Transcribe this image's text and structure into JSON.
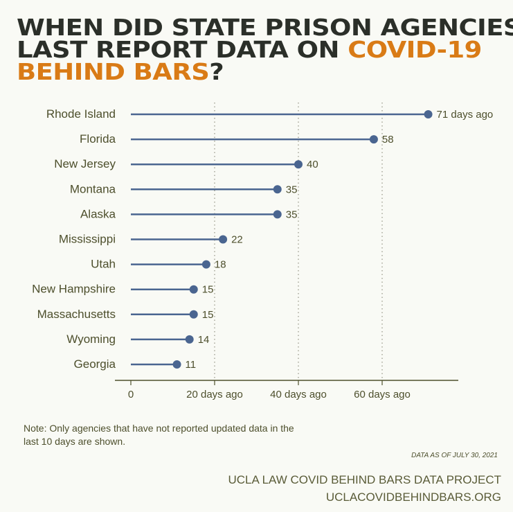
{
  "title": {
    "part1": "WHEN DID STATE PRISON AGENCIES",
    "part2": "LAST REPORT DATA ON ",
    "highlight1": "COVID-19",
    "highlight2": "BEHIND BARS",
    "end": "?"
  },
  "colors": {
    "accent": "#d97b16",
    "title": "#2b2f29",
    "series": "#4a6590",
    "text": "#4d4f2c",
    "background": "#f9faf5"
  },
  "chart_data": {
    "type": "lollipop",
    "categories": [
      "Rhode Island",
      "Florida",
      "New Jersey",
      "Montana",
      "Alaska",
      "Mississippi",
      "Utah",
      "New Hampshire",
      "Massachusetts",
      "Wyoming",
      "Georgia"
    ],
    "values": [
      71,
      58,
      40,
      35,
      35,
      22,
      18,
      15,
      15,
      14,
      11
    ],
    "data_labels": [
      "71 days ago",
      "58",
      "40",
      "35",
      "35",
      "22",
      "18",
      "15",
      "15",
      "14",
      "11"
    ],
    "x_ticks": [
      0,
      20,
      40,
      60
    ],
    "x_tick_labels": [
      "0",
      "20 days ago",
      "40 days ago",
      "60 days ago"
    ],
    "xlim": [
      -4,
      78
    ],
    "grid": "vertical dotted"
  },
  "note": "Note:  Only agencies that have not reported updated data in the last 10 days are shown.",
  "as_of": "DATA AS OF JULY 30, 2021",
  "credit": {
    "line1": "UCLA LAW COVID BEHIND BARS DATA PROJECT",
    "line2": "UCLACOVIDBEHINDBARS.ORG"
  }
}
